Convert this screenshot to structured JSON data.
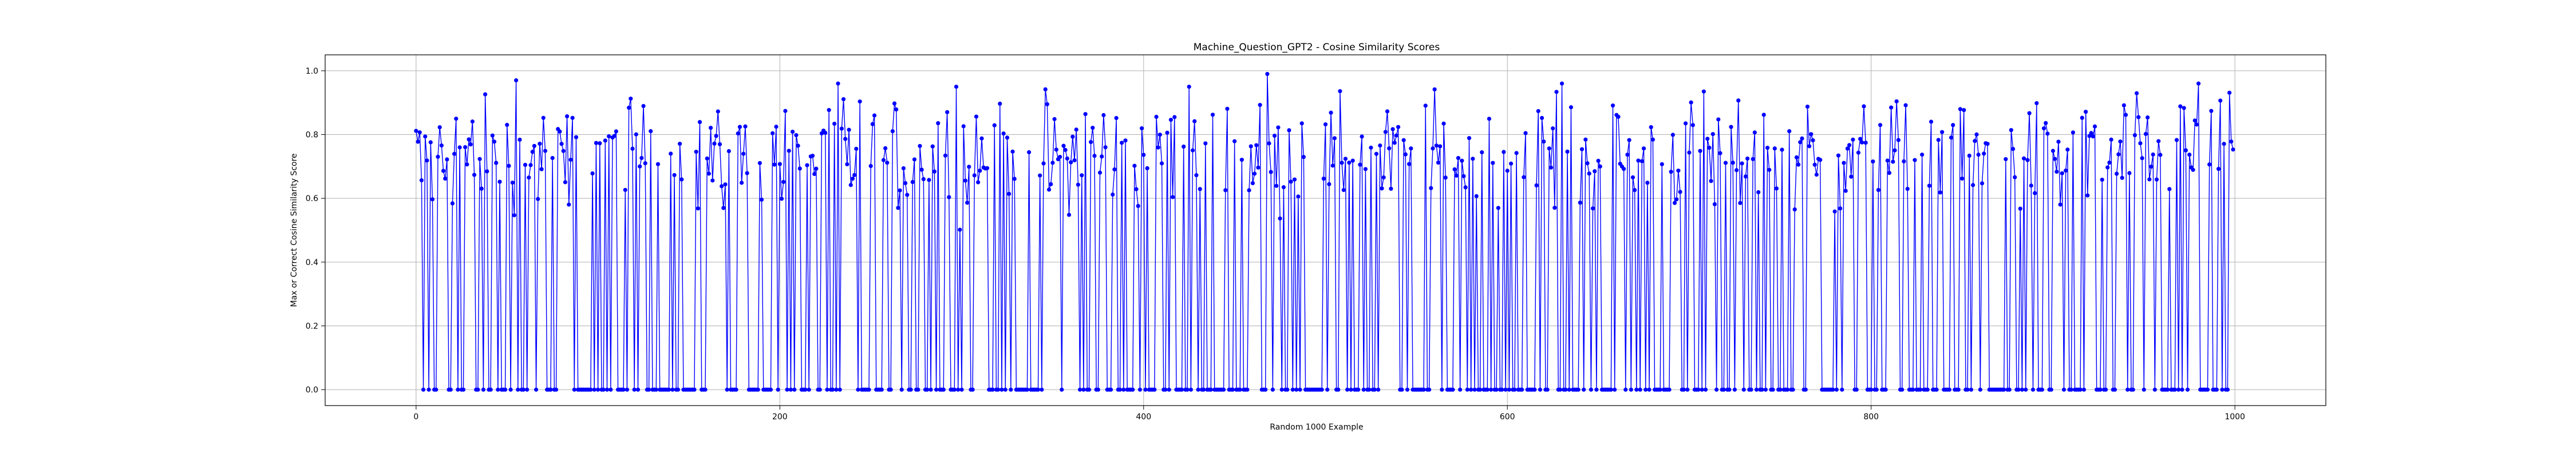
{
  "chart_data": {
    "type": "line",
    "title": "Machine_Question_GPT2 - Cosine Similarity Scores",
    "xlabel": "Random 1000 Example",
    "ylabel": "Max or Correct Cosine Similarity Score",
    "xlim": [
      -50,
      1050
    ],
    "ylim": [
      -0.05,
      1.05
    ],
    "xticks": [
      0,
      200,
      400,
      600,
      800,
      1000
    ],
    "yticks": [
      0.0,
      0.2,
      0.4,
      0.6,
      0.8,
      1.0
    ],
    "ytick_labels": [
      "0.0",
      "0.2",
      "0.4",
      "0.6",
      "0.8",
      "1.0"
    ],
    "grid": true,
    "marker": "circle",
    "colors": {
      "line": "#0000ff",
      "grid": "#b0b0b0"
    },
    "series": [
      {
        "points": 1000,
        "approx_nonzero_range": [
          0.4,
          0.99
        ],
        "sample_values": [
          {
            "x": 55,
            "y": 0.97
          },
          {
            "x": 232,
            "y": 0.96
          },
          {
            "x": 297,
            "y": 0.95
          },
          {
            "x": 425,
            "y": 0.95
          },
          {
            "x": 468,
            "y": 0.99
          },
          {
            "x": 630,
            "y": 0.96
          },
          {
            "x": 980,
            "y": 0.96
          }
        ]
      }
    ]
  }
}
